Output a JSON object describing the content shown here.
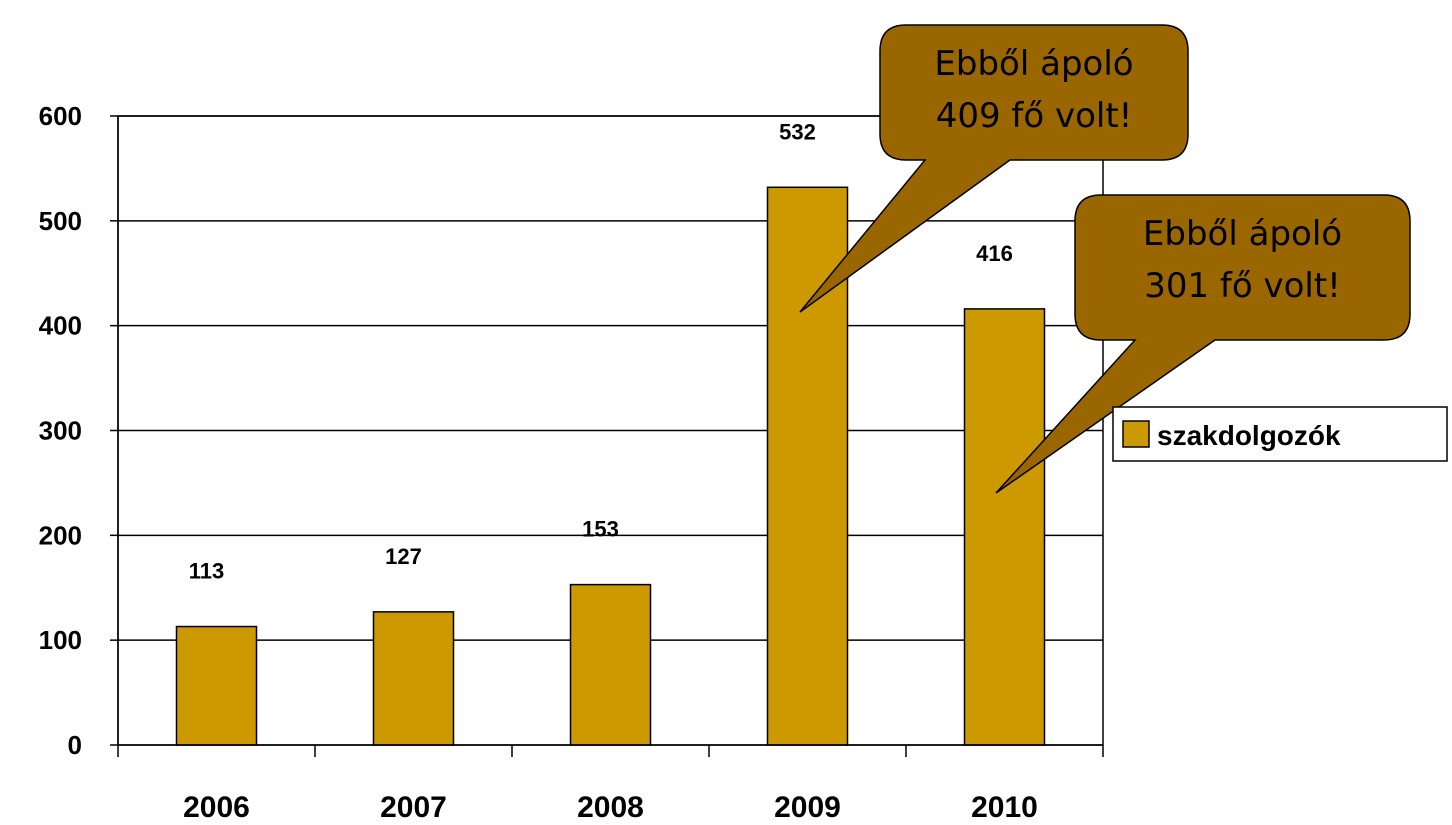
{
  "chart_data": {
    "type": "bar",
    "categories": [
      "2006",
      "2007",
      "2008",
      "2009",
      "2010"
    ],
    "series": [
      {
        "name": "szakdolgozók",
        "values": [
          113,
          127,
          153,
          532,
          416
        ],
        "color": "#CC9900"
      }
    ],
    "data_labels": [
      "113",
      "127",
      "153",
      "532",
      "416"
    ],
    "ylim": [
      0,
      600
    ],
    "yticks": [
      0,
      100,
      200,
      300,
      400,
      500,
      600
    ],
    "grid": true,
    "legend": {
      "position": "right",
      "entries": [
        "szakdolgozók"
      ]
    },
    "annotations": [
      {
        "lines": [
          "Ebből ápoló",
          "409 fő volt!"
        ],
        "category": "2009"
      },
      {
        "lines": [
          "Ebből ápoló",
          "301 fő volt!"
        ],
        "category": "2010"
      }
    ],
    "callout_color": "#996600",
    "title": "",
    "xlabel": "",
    "ylabel": ""
  }
}
